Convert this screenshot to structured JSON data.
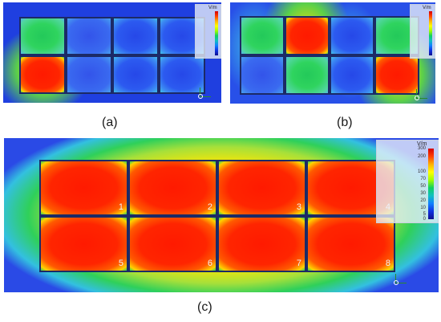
{
  "figure": {
    "panels": [
      {
        "id": "a",
        "caption": "(a)",
        "legend_unit": "V/m",
        "cells": [
          "mid",
          "pale",
          "cool",
          "cool",
          "hot",
          "pale",
          "cool",
          "cool"
        ]
      },
      {
        "id": "b",
        "caption": "(b)",
        "legend_unit": "V/m",
        "cells": [
          "mid",
          "hot",
          "cool",
          "mid",
          "pale",
          "mid",
          "cool",
          "hot"
        ]
      },
      {
        "id": "c",
        "caption": "(c)",
        "legend_unit": "V/m",
        "legend_ticks": [
          "300",
          "200",
          "100",
          "70",
          "50",
          "30",
          "20",
          "10",
          "5",
          "0"
        ],
        "cell_numbers": [
          "1",
          "2",
          "3",
          "4",
          "5",
          "6",
          "7",
          "8"
        ]
      }
    ],
    "colors": {
      "high": "#ff2000",
      "mid": "#2fd45e",
      "low": "#2a4ae6",
      "frame": "#1c2a66"
    },
    "icons": [
      "axis-triad-icon"
    ]
  }
}
